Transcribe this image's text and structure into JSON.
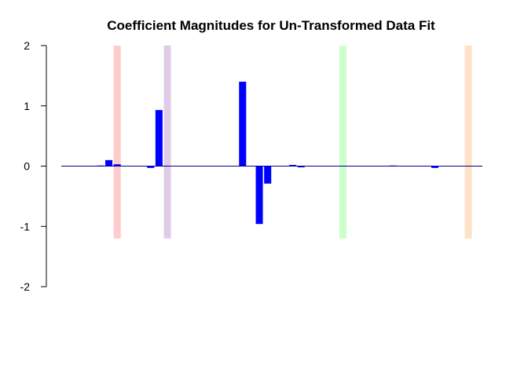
{
  "chart_data": {
    "type": "bar",
    "title": "Coefficient Magnitudes for Un-Transformed Data Fit",
    "xlabel": "",
    "ylabel": "",
    "ylim": [
      -2,
      2
    ],
    "yticks": [
      2,
      1,
      0,
      -1,
      -2
    ],
    "ytick_labels": [
      "2",
      "1",
      "0",
      "-1",
      "-2"
    ],
    "grid": false,
    "bar_color": "#0000ff",
    "baseline_color": "#00008b",
    "n_bars": 50,
    "values": [
      0,
      0,
      0,
      0,
      0.01,
      0.1,
      0.03,
      0,
      0,
      0,
      -0.03,
      0.93,
      0,
      0,
      0,
      0,
      0,
      0,
      0,
      0,
      0,
      1.4,
      0,
      -0.96,
      -0.29,
      0,
      0,
      0.02,
      -0.02,
      0,
      0,
      0,
      0,
      0,
      0,
      0,
      0,
      0,
      0,
      0.01,
      0,
      0,
      0,
      0,
      -0.03,
      0,
      0,
      0,
      0,
      0
    ],
    "highlight_bands": [
      {
        "bar_index": 6,
        "color": "#ffcccc"
      },
      {
        "bar_index": 12,
        "color": "#e0cce8"
      },
      {
        "bar_index": 33,
        "color": "#ccffcc"
      },
      {
        "bar_index": 48,
        "color": "#fde2c8"
      }
    ],
    "highlight_band_range": [
      -1.2,
      2
    ]
  }
}
